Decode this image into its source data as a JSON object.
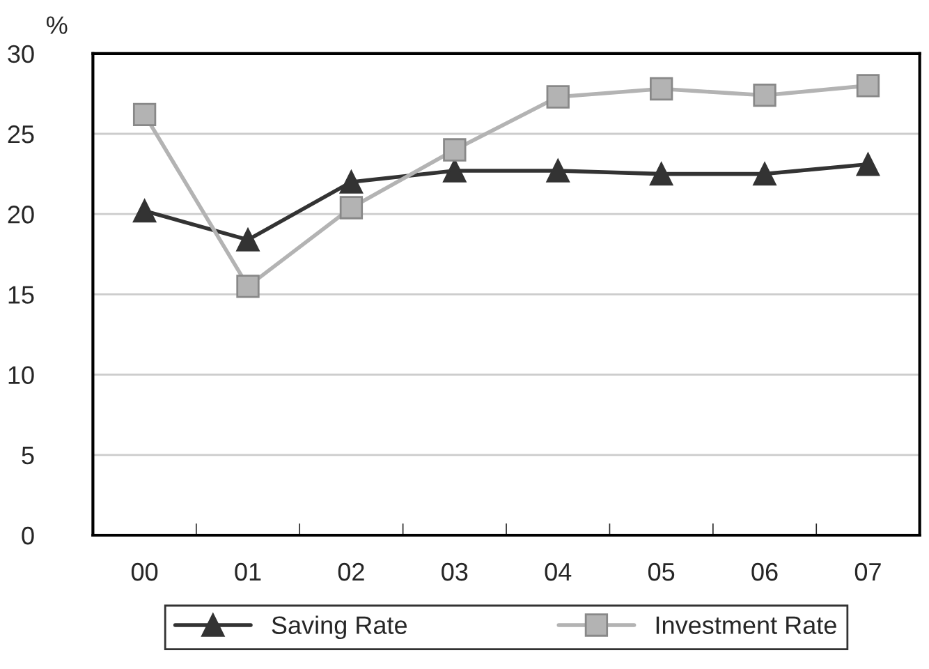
{
  "chart_data": {
    "type": "line",
    "ylabel": "%",
    "categories": [
      "00",
      "01",
      "02",
      "03",
      "04",
      "05",
      "06",
      "07"
    ],
    "series": [
      {
        "name": "Saving Rate",
        "color": "#333333",
        "marker": "triangle",
        "values": [
          20.2,
          18.4,
          22.0,
          22.7,
          22.7,
          22.5,
          22.5,
          23.1
        ]
      },
      {
        "name": "Investment Rate",
        "color": "#b3b3b3",
        "marker": "square",
        "values": [
          26.2,
          15.5,
          20.4,
          24.0,
          27.3,
          27.8,
          27.4,
          28.0
        ]
      }
    ],
    "ylim": [
      0,
      30
    ],
    "yticks": [
      0,
      5,
      10,
      15,
      20,
      25,
      30
    ],
    "grid": "y",
    "legend": "bottom",
    "line_style": "solid"
  }
}
